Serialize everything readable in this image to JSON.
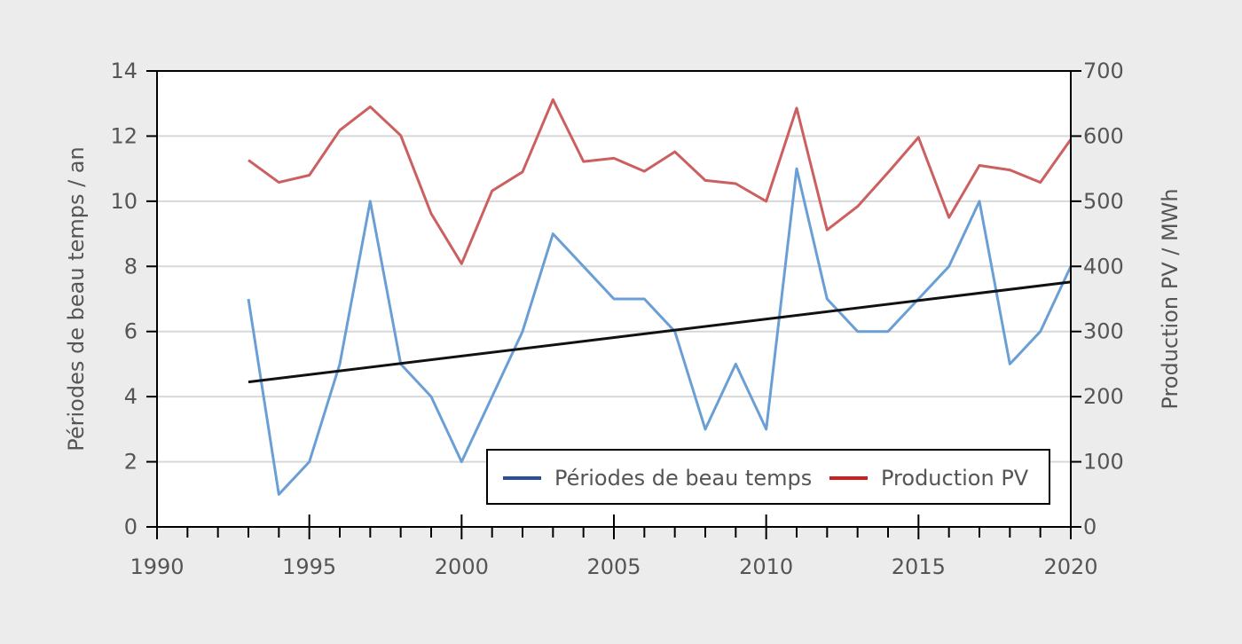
{
  "chart_data": {
    "type": "line",
    "title": "",
    "xlabel": "",
    "ylabel": "Périodes de beau temps / an",
    "y2label": "Production PV / MWh",
    "xlim": [
      1990,
      2020
    ],
    "ylim": [
      0,
      14
    ],
    "y2lim": [
      0,
      700
    ],
    "x_ticks": [
      "1990",
      "1995",
      "2000",
      "2005",
      "2010",
      "2015",
      "2020"
    ],
    "y_ticks": [
      "0",
      "2",
      "4",
      "6",
      "8",
      "10",
      "12",
      "14"
    ],
    "y2_ticks": [
      "0",
      "100",
      "200",
      "300",
      "400",
      "500",
      "600",
      "700"
    ],
    "grid": true,
    "legend_position": "bottom-right",
    "x": [
      1993,
      1994,
      1995,
      1996,
      1997,
      1998,
      1999,
      2000,
      2001,
      2002,
      2003,
      2004,
      2005,
      2006,
      2007,
      2008,
      2009,
      2010,
      2011,
      2012,
      2013,
      2014,
      2015,
      2016,
      2017,
      2018,
      2019,
      2020
    ],
    "series": [
      {
        "name": "Périodes de beau temps",
        "axis": "left",
        "color": "#6a9fd6",
        "legend_color": "#2a4d9c",
        "values": [
          7,
          1,
          2,
          5,
          10,
          5,
          4,
          2,
          4,
          6,
          9,
          8,
          7,
          7,
          6,
          3,
          5,
          3,
          11,
          7,
          6,
          6,
          7,
          8,
          10,
          5,
          6,
          8
        ]
      },
      {
        "name": "Production PV",
        "axis": "right",
        "color": "#cc5f5f",
        "legend_color": "#cc1f1f",
        "values": [
          563,
          529,
          540,
          609,
          645,
          601,
          481,
          404,
          516,
          545,
          656,
          561,
          566,
          546,
          576,
          532,
          527,
          500,
          643,
          456,
          492,
          544,
          598,
          475,
          555,
          548,
          529,
          595
        ]
      }
    ],
    "trend": {
      "color": "#111111",
      "x": [
        1993,
        2020
      ],
      "values": [
        4.45,
        7.52
      ]
    }
  }
}
